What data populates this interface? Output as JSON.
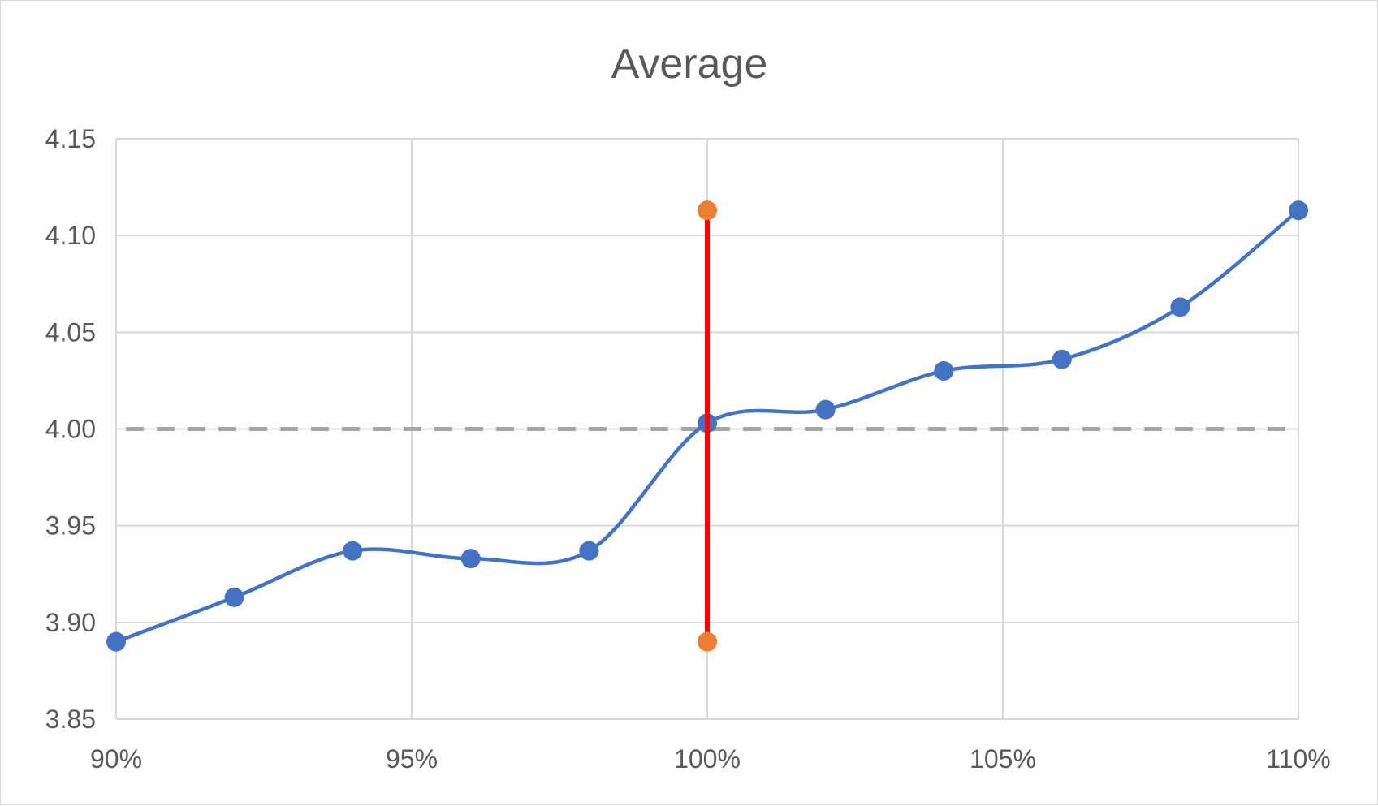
{
  "chart_data": {
    "type": "line",
    "title": "Average",
    "xlabel": "",
    "ylabel": "",
    "xlim": [
      0.9,
      1.1
    ],
    "ylim": [
      3.85,
      4.15
    ],
    "x_ticks": [
      0.9,
      0.95,
      1.0,
      1.05,
      1.1
    ],
    "x_tick_labels": [
      "90%",
      "95%",
      "100%",
      "105%",
      "110%"
    ],
    "y_ticks": [
      3.85,
      3.9,
      3.95,
      4.0,
      4.05,
      4.1,
      4.15
    ],
    "y_tick_labels": [
      "3.85",
      "3.90",
      "3.95",
      "4.00",
      "4.05",
      "4.10",
      "4.15"
    ],
    "grid": true,
    "legend": "none",
    "series": [
      {
        "x": [
          0.9,
          0.92,
          0.94,
          0.96,
          0.98,
          1.0,
          1.02,
          1.04,
          1.06,
          1.08,
          1.1
        ],
        "y": [
          3.89,
          3.913,
          3.937,
          3.933,
          3.937,
          4.003,
          4.01,
          4.03,
          4.036,
          4.063,
          4.113
        ],
        "color": "#4472c4",
        "style": "smooth-line-markers"
      }
    ],
    "reference_line": {
      "y": 4.0,
      "color": "#a6a6a6",
      "style": "dashed"
    },
    "vertical_range": {
      "x": 1.0,
      "y_low": 3.89,
      "y_high": 4.113,
      "line_color": "#ff0000",
      "marker_color": "#ed7d31"
    }
  }
}
